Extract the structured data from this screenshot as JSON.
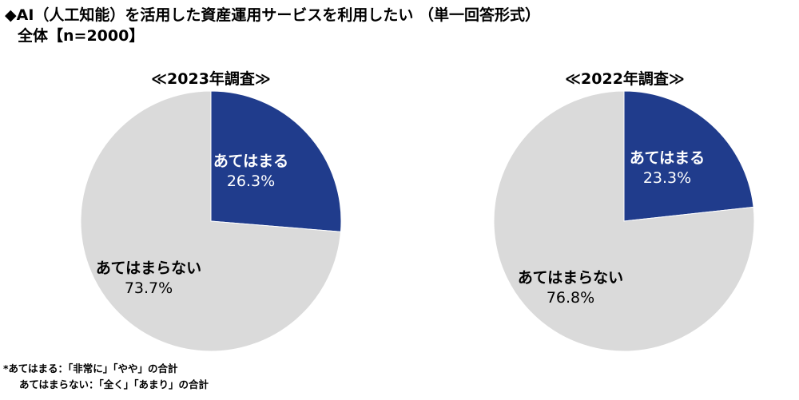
{
  "header": {
    "title": "◆AI（人工知能）を活用した資産運用サービスを利用したい （単一回答形式）",
    "subtitle": "全体【n=2000】"
  },
  "colors": {
    "yes": "#203c8c",
    "no": "#dadada"
  },
  "chart_data": [
    {
      "type": "pie",
      "title": "≪2023年調査≫",
      "slices": [
        {
          "label": "あてはまる",
          "value": 26.3,
          "display": "26.3%"
        },
        {
          "label": "あてはまらない",
          "value": 73.7,
          "display": "73.7%"
        }
      ]
    },
    {
      "type": "pie",
      "title": "≪2022年調査≫",
      "slices": [
        {
          "label": "あてはまる",
          "value": 23.3,
          "display": "23.3%"
        },
        {
          "label": "あてはまらない",
          "value": 76.8,
          "display": "76.8%"
        }
      ]
    }
  ],
  "footnotes": [
    "*あてはまる：「非常に」「やや」の合計",
    "あてはまらない：「全く」「あまり」の合計"
  ]
}
